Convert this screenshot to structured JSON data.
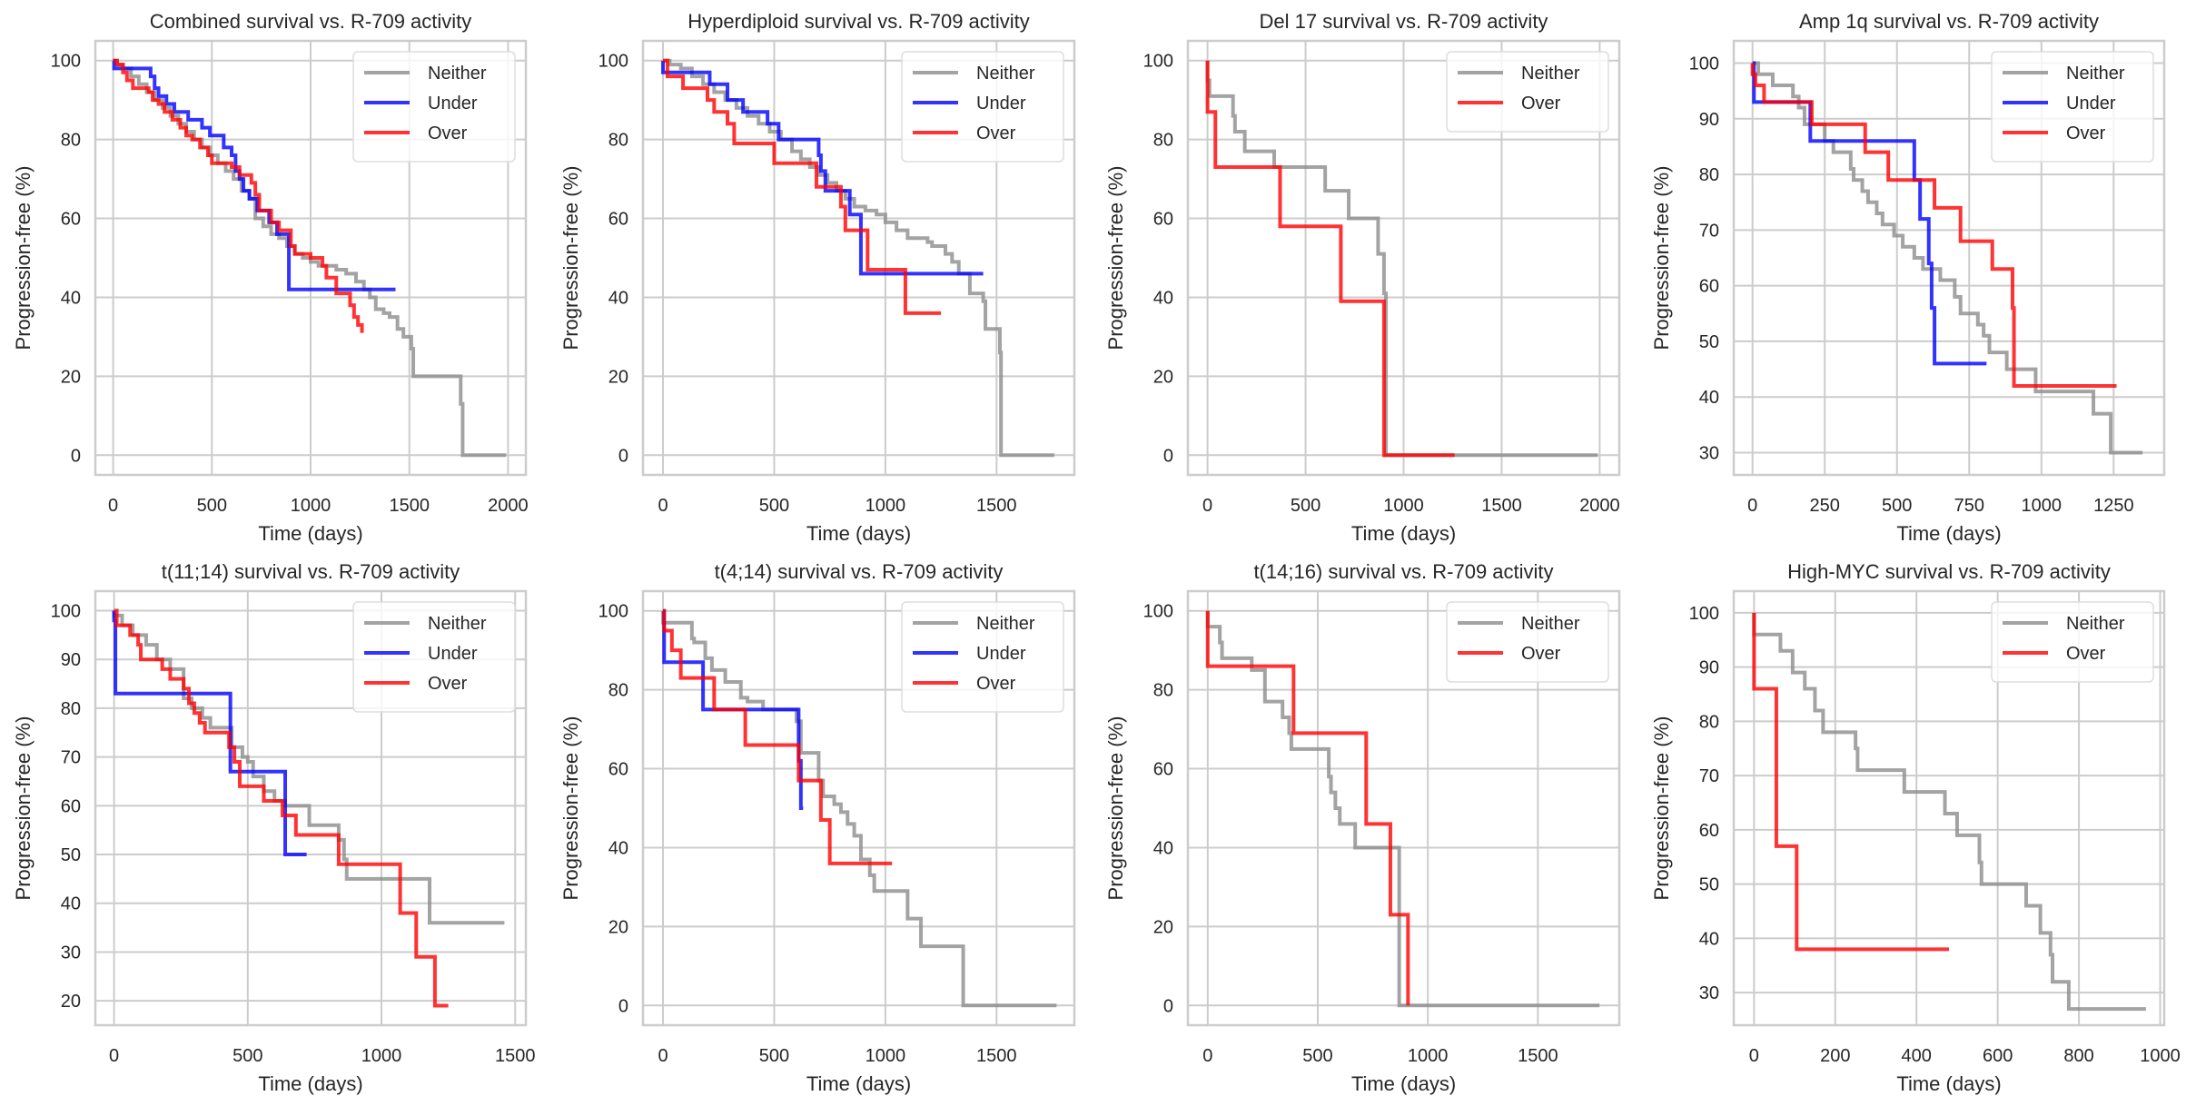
{
  "figure": {
    "background": "#ffffff",
    "grid_color": "#cccccc",
    "spine_color": "#cccccc",
    "legend_border": "#dddddd"
  },
  "chart_data": [
    {
      "type": "line",
      "title": "Combined survival vs. R-709 activity",
      "xlabel": "Time (days)",
      "ylabel": "Progression-free (%)",
      "xlim": [
        -90,
        2090
      ],
      "ylim": [
        -5,
        105
      ],
      "xticks": [
        0,
        500,
        1000,
        1500,
        2000
      ],
      "yticks": [
        0,
        20,
        40,
        60,
        80,
        100
      ],
      "grid": true,
      "legend": "top-right",
      "series": [
        {
          "name": "Neither",
          "color": "#8c8c8c",
          "x": [
            0,
            20,
            50,
            90,
            130,
            170,
            210,
            250,
            290,
            330,
            370,
            410,
            450,
            490,
            530,
            570,
            610,
            650,
            690,
            720,
            760,
            800,
            840,
            880,
            920,
            960,
            1000,
            1040,
            1080,
            1130,
            1180,
            1230,
            1270,
            1300,
            1330,
            1370,
            1400,
            1440,
            1470,
            1510,
            1520,
            1760,
            1770,
            1990
          ],
          "y": [
            100,
            99,
            98,
            96,
            94,
            92,
            90,
            88,
            86,
            84,
            82,
            80,
            78,
            76,
            74,
            72,
            70,
            67,
            65,
            60,
            58,
            56,
            55,
            53,
            51,
            50,
            49,
            48,
            48,
            47,
            46,
            44,
            42,
            40,
            37,
            36,
            35,
            32,
            30,
            27,
            20,
            13,
            0,
            0
          ]
        },
        {
          "name": "Under",
          "color": "#0000ff",
          "x": [
            0,
            5,
            190,
            210,
            230,
            270,
            310,
            380,
            450,
            490,
            560,
            600,
            620,
            640,
            660,
            690,
            730,
            790,
            830,
            890,
            1430
          ],
          "y": [
            100,
            98,
            96,
            93,
            91,
            89,
            87,
            85,
            83,
            81,
            78,
            76,
            72,
            70,
            67,
            65,
            62,
            59,
            56,
            42,
            42
          ]
        },
        {
          "name": "Over",
          "color": "#ff0000",
          "x": [
            0,
            20,
            50,
            70,
            100,
            180,
            200,
            230,
            260,
            300,
            340,
            370,
            400,
            440,
            480,
            500,
            600,
            640,
            700,
            720,
            740,
            800,
            840,
            900,
            920,
            1000,
            1060,
            1080,
            1130,
            1200,
            1220,
            1240,
            1260
          ],
          "y": [
            100,
            99,
            97,
            95,
            93,
            92,
            90,
            89,
            87,
            85,
            83,
            81,
            80,
            78,
            76,
            74,
            73,
            71,
            69,
            66,
            62,
            59,
            57,
            53,
            51,
            50,
            48,
            45,
            41,
            38,
            35,
            33,
            31
          ]
        }
      ]
    },
    {
      "type": "line",
      "title": "Hyperdiploid survival vs. R-709 activity",
      "xlabel": "Time (days)",
      "ylabel": "Progression-free (%)",
      "xlim": [
        -90,
        1850
      ],
      "ylim": [
        -5,
        105
      ],
      "xticks": [
        0,
        500,
        1000,
        1500
      ],
      "yticks": [
        0,
        20,
        40,
        60,
        80,
        100
      ],
      "grid": true,
      "legend": "top-right",
      "series": [
        {
          "name": "Neither",
          "color": "#8c8c8c",
          "x": [
            0,
            30,
            80,
            130,
            180,
            230,
            280,
            330,
            380,
            430,
            480,
            530,
            580,
            620,
            660,
            700,
            740,
            780,
            820,
            860,
            910,
            960,
            1000,
            1050,
            1100,
            1150,
            1190,
            1210,
            1270,
            1300,
            1330,
            1380,
            1410,
            1440,
            1450,
            1510,
            1515,
            1520,
            1760
          ],
          "y": [
            100,
            99,
            98,
            96,
            94,
            92,
            90,
            88,
            86,
            84,
            82,
            80,
            77,
            75,
            73,
            71,
            69,
            67,
            65,
            63,
            62,
            61,
            59,
            57,
            55,
            55,
            54,
            53,
            51,
            49,
            46,
            41,
            41,
            39,
            32,
            32,
            26,
            0,
            0
          ]
        },
        {
          "name": "Under",
          "color": "#0000ff",
          "x": [
            0,
            210,
            290,
            360,
            470,
            520,
            700,
            710,
            730,
            840,
            890,
            1440
          ],
          "y": [
            97,
            94,
            90,
            87,
            84,
            80,
            76,
            72,
            67,
            61,
            46,
            46
          ]
        },
        {
          "name": "Over",
          "color": "#ff0000",
          "x": [
            0,
            20,
            90,
            200,
            230,
            290,
            320,
            500,
            690,
            800,
            820,
            920,
            1090,
            1250
          ],
          "y": [
            100,
            96,
            93,
            90,
            87,
            84,
            79,
            74,
            68,
            63,
            57,
            47,
            36,
            36
          ]
        }
      ]
    },
    {
      "type": "line",
      "title": "Del 17 survival vs. R-709 activity",
      "xlabel": "Time (days)",
      "ylabel": "Progression-free (%)",
      "xlim": [
        -100,
        2100
      ],
      "ylim": [
        -5,
        105
      ],
      "xticks": [
        0,
        500,
        1000,
        1500,
        2000
      ],
      "yticks": [
        0,
        20,
        40,
        60,
        80,
        100
      ],
      "grid": true,
      "legend": "top-right",
      "series": [
        {
          "name": "Neither",
          "color": "#8c8c8c",
          "x": [
            0,
            10,
            130,
            140,
            190,
            340,
            600,
            720,
            870,
            900,
            910,
            1990
          ],
          "y": [
            95,
            91,
            86,
            82,
            77,
            73,
            67,
            60,
            51,
            41,
            0,
            0
          ]
        },
        {
          "name": "Over",
          "color": "#ff0000",
          "x": [
            0,
            40,
            370,
            680,
            900,
            1260
          ],
          "y": [
            87,
            73,
            58,
            39,
            0,
            0
          ]
        }
      ]
    },
    {
      "type": "line",
      "title": "Amp 1q survival vs. R-709 activity",
      "xlabel": "Time (days)",
      "ylabel": "Progression-free (%)",
      "xlim": [
        -65,
        1425
      ],
      "ylim": [
        26,
        104
      ],
      "xticks": [
        0,
        250,
        500,
        750,
        1000,
        1250
      ],
      "yticks": [
        30,
        40,
        50,
        60,
        70,
        80,
        90,
        100
      ],
      "grid": true,
      "legend": "top-right",
      "series": [
        {
          "name": "Neither",
          "color": "#8c8c8c",
          "x": [
            0,
            20,
            70,
            140,
            160,
            180,
            250,
            280,
            340,
            350,
            380,
            400,
            430,
            450,
            490,
            520,
            560,
            590,
            650,
            700,
            720,
            780,
            800,
            820,
            880,
            900,
            980,
            1180,
            1240,
            1350
          ],
          "y": [
            100,
            98,
            96,
            94,
            92,
            89,
            86,
            84,
            81,
            79,
            77,
            75,
            73,
            71,
            69,
            67,
            65,
            63,
            61,
            58,
            55,
            53,
            51,
            48,
            45,
            45,
            41,
            37,
            30,
            30
          ]
        },
        {
          "name": "Under",
          "color": "#0000ff",
          "x": [
            0,
            5,
            200,
            560,
            580,
            610,
            620,
            630,
            810
          ],
          "y": [
            100,
            93,
            86,
            79,
            72,
            64,
            56,
            46,
            46
          ]
        },
        {
          "name": "Over",
          "color": "#ff0000",
          "x": [
            0,
            10,
            40,
            205,
            390,
            470,
            630,
            720,
            830,
            900,
            905,
            1260
          ],
          "y": [
            98,
            96,
            93,
            89,
            84,
            79,
            74,
            68,
            63,
            56,
            42,
            42
          ]
        }
      ]
    },
    {
      "type": "line",
      "title": "t(11;14) survival vs. R-709 activity",
      "xlabel": "Time (days)",
      "ylabel": "Progression-free (%)",
      "xlim": [
        -70,
        1540
      ],
      "ylim": [
        15,
        104
      ],
      "xticks": [
        0,
        500,
        1000,
        1500
      ],
      "yticks": [
        20,
        30,
        40,
        50,
        60,
        70,
        80,
        90,
        100
      ],
      "grid": true,
      "legend": "top-right",
      "series": [
        {
          "name": "Neither",
          "color": "#8c8c8c",
          "x": [
            0,
            30,
            70,
            120,
            160,
            210,
            260,
            290,
            330,
            360,
            440,
            480,
            500,
            520,
            560,
            600,
            640,
            730,
            840,
            860,
            870,
            1180,
            1460
          ],
          "y": [
            99,
            97,
            95,
            93,
            90,
            88,
            82,
            80,
            78,
            76,
            72,
            70,
            69,
            66,
            63,
            61,
            60,
            56,
            53,
            49,
            45,
            36,
            36
          ]
        },
        {
          "name": "Under",
          "color": "#0000ff",
          "x": [
            0,
            5,
            435,
            640,
            720
          ],
          "y": [
            98,
            83,
            67,
            50,
            50
          ]
        },
        {
          "name": "Over",
          "color": "#ff0000",
          "x": [
            0,
            10,
            60,
            90,
            100,
            180,
            210,
            260,
            280,
            300,
            320,
            340,
            430,
            450,
            470,
            560,
            630,
            680,
            840,
            1070,
            1130,
            1200,
            1250
          ],
          "y": [
            100,
            97,
            95,
            93,
            90,
            88,
            86,
            84,
            81,
            79,
            77,
            75,
            72,
            69,
            64,
            61,
            58,
            54,
            48,
            38,
            29,
            19,
            19
          ]
        }
      ]
    },
    {
      "type": "line",
      "title": "t(4;14) survival vs. R-709 activity",
      "xlabel": "Time (days)",
      "ylabel": "Progression-free (%)",
      "xlim": [
        -90,
        1850
      ],
      "ylim": [
        -5,
        105
      ],
      "xticks": [
        0,
        500,
        1000,
        1500
      ],
      "yticks": [
        0,
        20,
        40,
        60,
        80,
        100
      ],
      "grid": true,
      "legend": "top-right",
      "series": [
        {
          "name": "Neither",
          "color": "#8c8c8c",
          "x": [
            0,
            130,
            140,
            190,
            220,
            280,
            350,
            380,
            450,
            600,
            620,
            700,
            720,
            770,
            800,
            830,
            860,
            890,
            930,
            950,
            1100,
            1160,
            1350,
            1770
          ],
          "y": [
            97,
            93,
            92,
            88,
            85,
            82,
            78,
            77,
            75,
            72,
            64,
            57,
            53,
            51,
            49,
            46,
            43,
            37,
            33,
            29,
            22,
            15,
            0,
            0
          ]
        },
        {
          "name": "Under",
          "color": "#0000ff",
          "x": [
            0,
            5,
            180,
            610,
            620,
            630
          ],
          "y": [
            100,
            87,
            75,
            62,
            50,
            50
          ]
        },
        {
          "name": "Over",
          "color": "#ff0000",
          "x": [
            0,
            5,
            40,
            80,
            230,
            370,
            610,
            710,
            750,
            1030
          ],
          "y": [
            100,
            95,
            90,
            83,
            75,
            66,
            57,
            47,
            36,
            36
          ]
        }
      ]
    },
    {
      "type": "line",
      "title": "t(14;16) survival vs. R-709 activity",
      "xlabel": "Time (days)",
      "ylabel": "Progression-free (%)",
      "xlim": [
        -90,
        1870
      ],
      "ylim": [
        -5,
        105
      ],
      "xticks": [
        0,
        500,
        1000,
        1500
      ],
      "yticks": [
        0,
        20,
        40,
        60,
        80,
        100
      ],
      "grid": true,
      "legend": "top-right",
      "series": [
        {
          "name": "Neither",
          "color": "#8c8c8c",
          "x": [
            0,
            55,
            65,
            200,
            260,
            340,
            370,
            380,
            550,
            560,
            580,
            600,
            670,
            870,
            1780
          ],
          "y": [
            96,
            92,
            88,
            85,
            77,
            73,
            69,
            65,
            58,
            54,
            50,
            46,
            40,
            0,
            0
          ]
        },
        {
          "name": "Over",
          "color": "#ff0000",
          "x": [
            0,
            390,
            720,
            830,
            910
          ],
          "y": [
            86,
            69,
            46,
            23,
            0
          ]
        }
      ]
    },
    {
      "type": "line",
      "title": "High-MYC survival vs. R-709 activity",
      "xlabel": "Time (days)",
      "ylabel": "Progression-free (%)",
      "xlim": [
        -50,
        1010
      ],
      "ylim": [
        24,
        104
      ],
      "xticks": [
        0,
        200,
        400,
        600,
        800,
        1000
      ],
      "yticks": [
        30,
        40,
        50,
        60,
        70,
        80,
        90,
        100
      ],
      "grid": true,
      "legend": "top-right",
      "series": [
        {
          "name": "Neither",
          "color": "#8c8c8c",
          "x": [
            0,
            65,
            95,
            125,
            150,
            170,
            250,
            255,
            370,
            470,
            500,
            555,
            560,
            670,
            705,
            730,
            735,
            775,
            965
          ],
          "y": [
            96,
            93,
            89,
            86,
            82,
            78,
            75,
            71,
            67,
            63,
            59,
            54,
            50,
            46,
            41,
            37,
            32,
            27,
            27
          ]
        },
        {
          "name": "Over",
          "color": "#ff0000",
          "x": [
            0,
            55,
            105,
            480
          ],
          "y": [
            86,
            57,
            38,
            38
          ]
        }
      ]
    }
  ]
}
